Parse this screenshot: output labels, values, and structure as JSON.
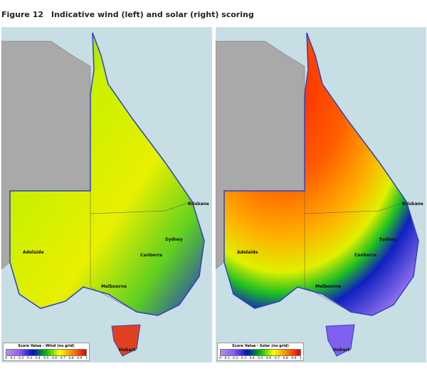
{
  "figure": {
    "number": "Figure 12",
    "caption": "Indicative wind (left) and solar (right) scoring"
  },
  "maps": [
    {
      "id": "wind",
      "legend_title": "Score Value - Wind (no grid)",
      "cities": [
        "Brisbane",
        "Sydney",
        "Canberra",
        "Melbourne",
        "Adelaide",
        "Hobart"
      ]
    },
    {
      "id": "solar",
      "legend_title": "Score Value - Solar (no grid)",
      "cities": [
        "Brisbane",
        "Sydney",
        "Canberra",
        "Melbourne",
        "Adelaide",
        "Hobart"
      ]
    }
  ],
  "legend_ticks": [
    "0",
    "0.1",
    "0.2",
    "0.3",
    "0.4",
    "0.5",
    "0.6",
    "0.7",
    "0.8",
    "0.9",
    "1"
  ],
  "colors": {
    "sea": "#c8dee5",
    "other_land": "#a9a9a9",
    "scale": [
      "#b58cf0",
      "#8a5cf0",
      "#0010c0",
      "#00c000",
      "#ffff00",
      "#ff8000",
      "#e00000"
    ]
  }
}
